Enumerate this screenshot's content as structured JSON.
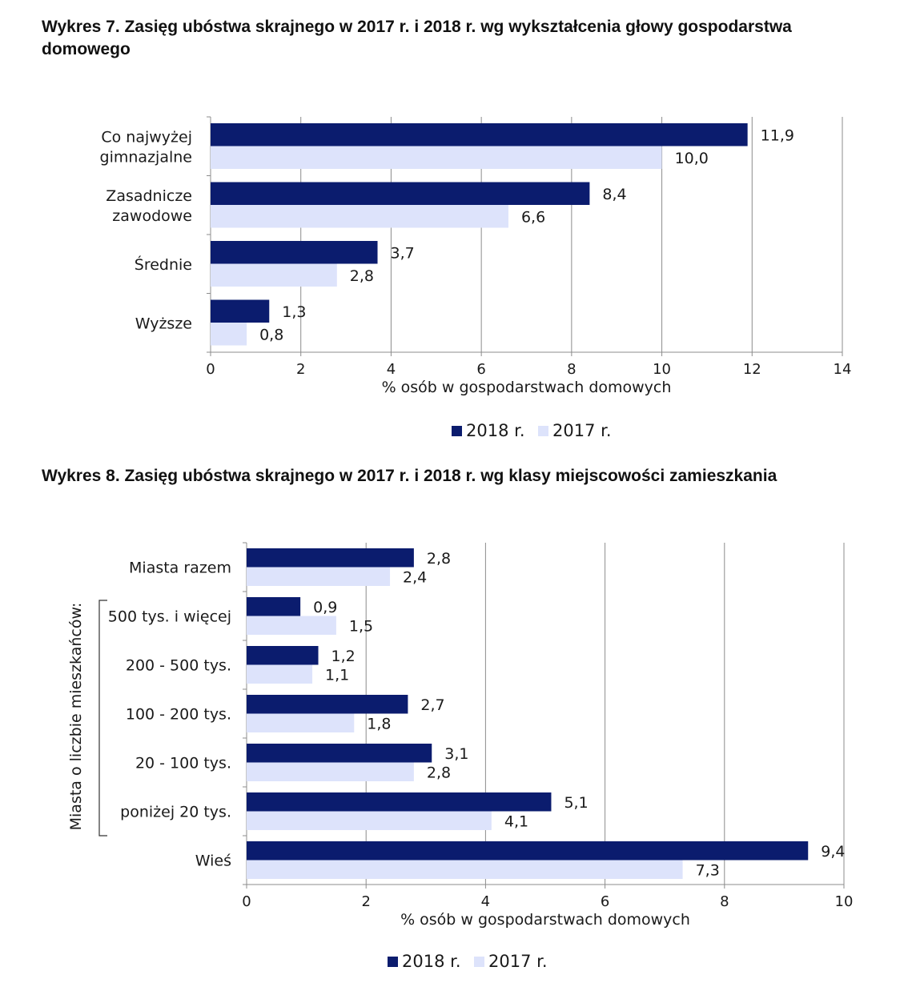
{
  "chart_data": [
    {
      "type": "bar",
      "orientation": "horizontal",
      "title": "Wykres 7. Zasięg ubóstwa skrajnego w 2017 r. i 2018 r. wg wykształcenia głowy gospodarstwa domowego",
      "categories": [
        [
          "Co najwyżej",
          "gimnazjalne"
        ],
        [
          "Zasadnicze",
          "zawodowe"
        ],
        [
          "Średnie"
        ],
        [
          "Wyższe"
        ]
      ],
      "series": [
        {
          "name": "2018 r.",
          "values": [
            11.9,
            8.4,
            3.7,
            1.3
          ],
          "labels": [
            "11,9",
            "8,4",
            "3,7",
            "1,3"
          ]
        },
        {
          "name": "2017 r.",
          "values": [
            10.0,
            6.6,
            2.8,
            0.8
          ],
          "labels": [
            "10,0",
            "6,6",
            "2,8",
            "0,8"
          ]
        }
      ],
      "xlabel": "% osób w gospodarstwach domowych",
      "xlim": [
        0,
        14
      ],
      "xticks": [
        0,
        2,
        4,
        6,
        8,
        10,
        12,
        14
      ],
      "grid": true,
      "legend": "bottom"
    },
    {
      "type": "bar",
      "orientation": "horizontal",
      "title": "Wykres 8. Zasięg ubóstwa skrajnego w 2017 r. i 2018 r. wg klasy miejscowości zamieszkania",
      "categories": [
        [
          "Miasta razem"
        ],
        [
          "500 tys. i więcej"
        ],
        [
          "200 - 500 tys."
        ],
        [
          "100 - 200 tys."
        ],
        [
          "20 - 100 tys."
        ],
        [
          "poniżej 20 tys."
        ],
        [
          "Wieś"
        ]
      ],
      "group_label": "Miasta o liczbie mieszkańców:",
      "series": [
        {
          "name": "2018 r.",
          "values": [
            2.8,
            0.9,
            1.2,
            2.7,
            3.1,
            5.1,
            9.4
          ],
          "labels": [
            "2,8",
            "0,9",
            "1,2",
            "2,7",
            "3,1",
            "5,1",
            "9,4"
          ]
        },
        {
          "name": "2017 r.",
          "values": [
            2.4,
            1.5,
            1.1,
            1.8,
            2.8,
            4.1,
            7.3
          ],
          "labels": [
            "2,4",
            "1,5",
            "1,1",
            "1,8",
            "2,8",
            "4,1",
            "7,3"
          ]
        }
      ],
      "xlabel": "% osób w gospodarstwach domowych",
      "xlim": [
        0,
        10
      ],
      "xticks": [
        0,
        2,
        4,
        6,
        8,
        10
      ],
      "grid": true,
      "legend": "bottom"
    }
  ],
  "colors": {
    "series_2018": "#0b1c6e",
    "series_2017": "#dde3fb",
    "grid": "#8c8c8c"
  }
}
